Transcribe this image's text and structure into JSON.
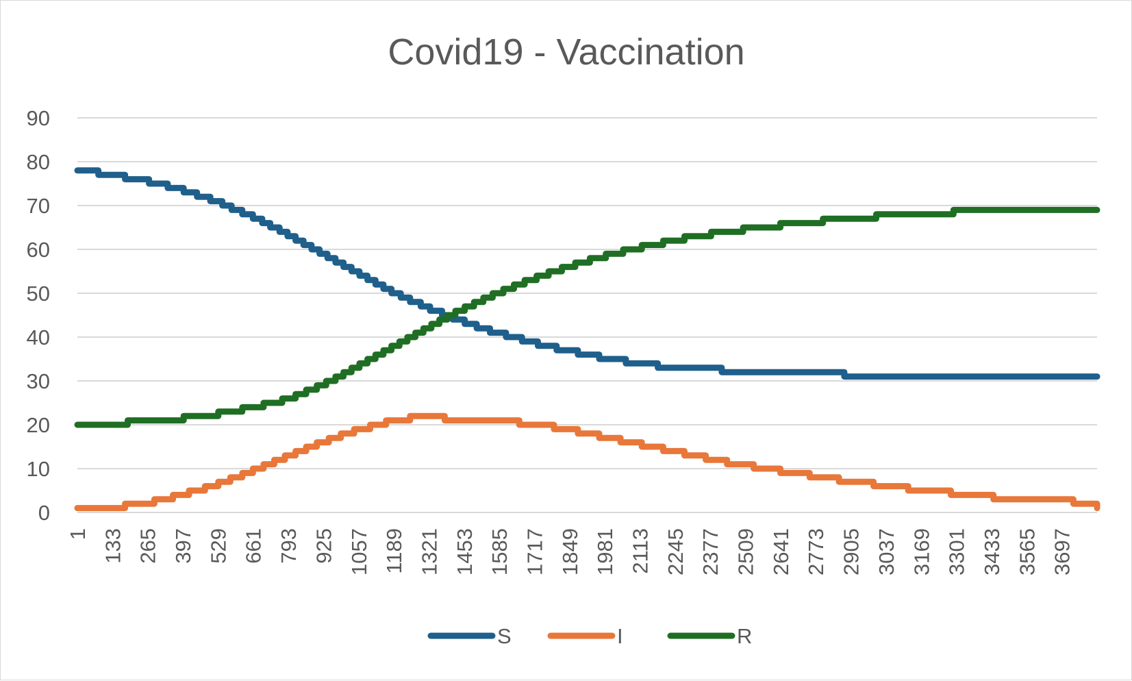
{
  "chart_data": {
    "type": "line",
    "title": "Covid19 - Vaccination",
    "xlabel": "",
    "ylabel": "",
    "ylim": [
      0,
      90
    ],
    "yticks": [
      0,
      10,
      20,
      30,
      40,
      50,
      60,
      70,
      80,
      90
    ],
    "xlim": [
      1,
      3829
    ],
    "x_tick_labels": [
      "1",
      "133",
      "265",
      "397",
      "529",
      "661",
      "793",
      "925",
      "1057",
      "1189",
      "1321",
      "1453",
      "1585",
      "1717",
      "1849",
      "1981",
      "2113",
      "2245",
      "2377",
      "2509",
      "2641",
      "2773",
      "2905",
      "3037",
      "3169",
      "3301",
      "3433",
      "3565",
      "3697"
    ],
    "x_tick_values": [
      1,
      133,
      265,
      397,
      529,
      661,
      793,
      925,
      1057,
      1189,
      1321,
      1453,
      1585,
      1717,
      1849,
      1981,
      2113,
      2245,
      2377,
      2509,
      2641,
      2773,
      2905,
      3037,
      3169,
      3301,
      3433,
      3565,
      3697
    ],
    "grid": true,
    "legend_position": "bottom",
    "step": true,
    "series": [
      {
        "name": "S",
        "color": "#1f5f8b",
        "x": [
          1,
          80,
          180,
          270,
          340,
          400,
          450,
          500,
          545,
          580,
          620,
          660,
          695,
          725,
          760,
          790,
          820,
          850,
          880,
          910,
          940,
          970,
          1000,
          1030,
          1060,
          1090,
          1120,
          1150,
          1180,
          1215,
          1250,
          1290,
          1325,
          1370,
          1410,
          1455,
          1500,
          1550,
          1610,
          1670,
          1730,
          1800,
          1880,
          1960,
          2060,
          2180,
          2420,
          2880,
          3829
        ],
        "y": [
          78,
          77,
          76,
          75,
          74,
          73,
          72,
          71,
          70,
          69,
          68,
          67,
          66,
          65,
          64,
          63,
          62,
          61,
          60,
          59,
          58,
          57,
          56,
          55,
          54,
          53,
          52,
          51,
          50,
          49,
          48,
          47,
          46,
          45,
          44,
          43,
          42,
          41,
          40,
          39,
          38,
          37,
          36,
          35,
          34,
          33,
          32,
          31,
          31
        ]
      },
      {
        "name": "I",
        "color": "#e8773a",
        "x": [
          1,
          180,
          290,
          360,
          420,
          480,
          530,
          575,
          620,
          660,
          700,
          740,
          780,
          820,
          860,
          900,
          945,
          990,
          1040,
          1100,
          1160,
          1250,
          1380,
          1660,
          1790,
          1880,
          1960,
          2040,
          2120,
          2200,
          2280,
          2360,
          2440,
          2540,
          2640,
          2750,
          2860,
          2990,
          3120,
          3280,
          3440,
          3740,
          3829
        ],
        "y": [
          1,
          2,
          3,
          4,
          5,
          6,
          7,
          8,
          9,
          10,
          11,
          12,
          13,
          14,
          15,
          16,
          17,
          18,
          19,
          20,
          21,
          22,
          21,
          20,
          19,
          18,
          17,
          16,
          15,
          14,
          13,
          12,
          11,
          10,
          9,
          8,
          7,
          6,
          5,
          4,
          3,
          2,
          1
        ]
      },
      {
        "name": "R",
        "color": "#1f6e24",
        "x": [
          1,
          190,
          400,
          530,
          620,
          700,
          770,
          820,
          860,
          900,
          935,
          970,
          1000,
          1030,
          1060,
          1090,
          1120,
          1150,
          1180,
          1210,
          1240,
          1270,
          1300,
          1330,
          1360,
          1390,
          1420,
          1455,
          1490,
          1525,
          1560,
          1600,
          1640,
          1680,
          1725,
          1770,
          1820,
          1870,
          1925,
          1985,
          2050,
          2120,
          2200,
          2280,
          2380,
          2500,
          2640,
          2800,
          3000,
          3290,
          3829
        ],
        "y": [
          20,
          21,
          22,
          23,
          24,
          25,
          26,
          27,
          28,
          29,
          30,
          31,
          32,
          33,
          34,
          35,
          36,
          37,
          38,
          39,
          40,
          41,
          42,
          43,
          44,
          45,
          46,
          47,
          48,
          49,
          50,
          51,
          52,
          53,
          54,
          55,
          56,
          57,
          58,
          59,
          60,
          61,
          62,
          63,
          64,
          65,
          66,
          67,
          68,
          69,
          69
        ]
      }
    ]
  }
}
